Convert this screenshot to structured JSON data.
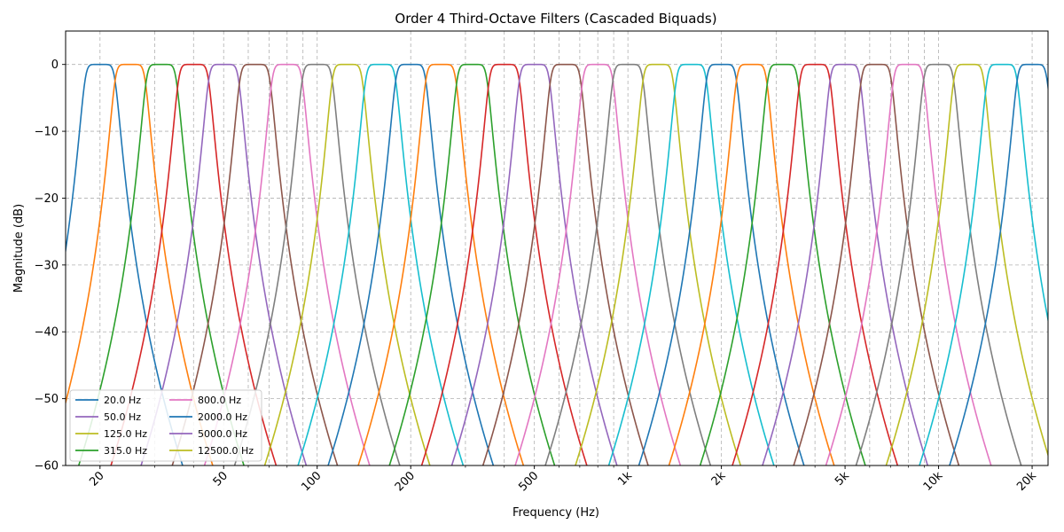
{
  "chart_data": {
    "type": "line",
    "title": "Order 4 Third-Octave Filters (Cascaded Biquads)",
    "xlabel": "Frequency (Hz)",
    "ylabel": "Magnitude (dB)",
    "x_scale": "log",
    "xlim": [
      15.5,
      22500
    ],
    "ylim": [
      -60,
      5
    ],
    "grid": true,
    "legend_placement": "lower-left",
    "filter_order": 4,
    "x_ticks": [
      20,
      50,
      100,
      200,
      500,
      1000,
      2000,
      5000,
      10000,
      20000
    ],
    "x_tick_labels": [
      "20",
      "50",
      "100",
      "200",
      "500",
      "1k",
      "2k",
      "5k",
      "10k",
      "20k"
    ],
    "y_ticks": [
      0,
      -10,
      -20,
      -30,
      -40,
      -50,
      -60
    ],
    "y_tick_labels": [
      "0",
      "−10",
      "−20",
      "−30",
      "−40",
      "−50",
      "−60"
    ],
    "colors": [
      "#1f77b4",
      "#ff7f0e",
      "#2ca02c",
      "#d62728",
      "#9467bd",
      "#8c564b",
      "#e377c2",
      "#7f7f7f",
      "#bcbd22",
      "#17becf"
    ],
    "center_frequencies": [
      20,
      25,
      31.5,
      40,
      50,
      63,
      80,
      100,
      125,
      160,
      200,
      250,
      315,
      400,
      500,
      630,
      800,
      1000,
      1250,
      1600,
      2000,
      2500,
      3150,
      4000,
      5000,
      6300,
      8000,
      10000,
      12500,
      16000,
      20000
    ],
    "legend": [
      {
        "label": "20.0 Hz",
        "color": "#1f77b4"
      },
      {
        "label": "50.0 Hz",
        "color": "#9467bd"
      },
      {
        "label": "125.0 Hz",
        "color": "#bcbd22"
      },
      {
        "label": "315.0 Hz",
        "color": "#2ca02c"
      },
      {
        "label": "800.0 Hz",
        "color": "#e377c2"
      },
      {
        "label": "2000.0 Hz",
        "color": "#1f77b4"
      },
      {
        "label": "5000.0 Hz",
        "color": "#9467bd"
      },
      {
        "label": "12500.0 Hz",
        "color": "#bcbd22"
      }
    ]
  }
}
